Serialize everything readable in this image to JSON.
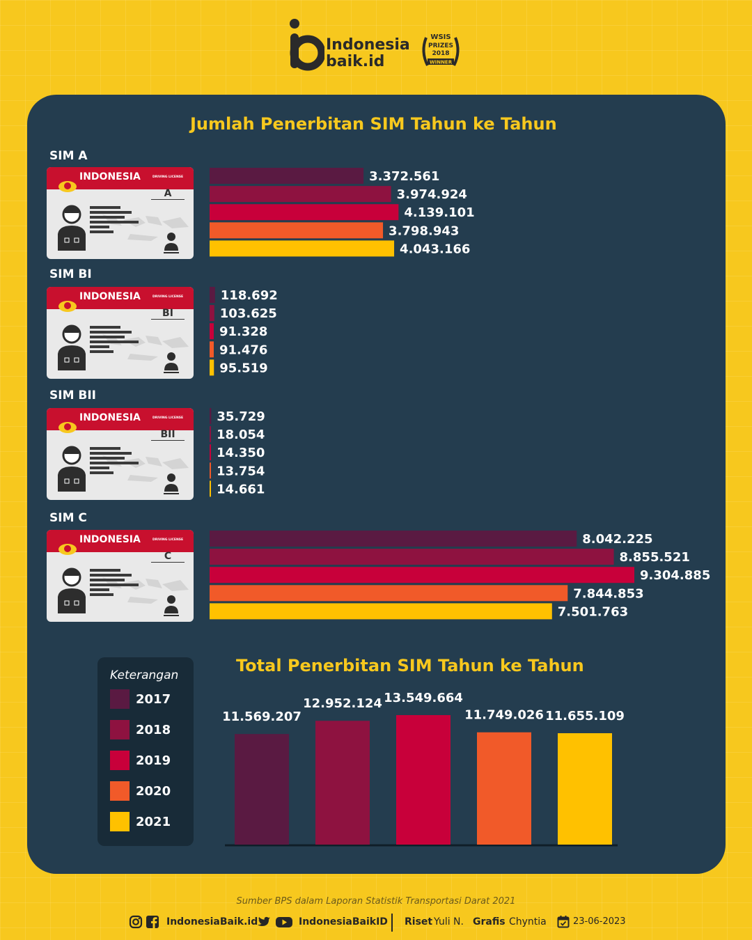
{
  "brand": {
    "name_line1": "Indonesia",
    "name_line2": "baik.id",
    "award_line1": "WSIS",
    "award_line2": "PRIZES",
    "award_line3": "2018",
    "award_line4": "WINNER"
  },
  "title": "Jumlah Penerbitan SIM Tahun ke Tahun",
  "card": {
    "country": "INDONESIA",
    "subtitle": "SURAT IZIN MENGEMUDI",
    "license_text": "DRIVING LICENSE"
  },
  "sim_groups": [
    {
      "label": "SIM A",
      "class": "A"
    },
    {
      "label": "SIM BI",
      "class": "BI"
    },
    {
      "label": "SIM BII",
      "class": "BII"
    },
    {
      "label": "SIM C",
      "class": "C"
    }
  ],
  "colors": {
    "2017": "#5a1a42",
    "2018": "#8e1240",
    "2019": "#c8003a",
    "2020": "#f15a29",
    "2021": "#ffc100",
    "panel": "#243d4f",
    "background": "#f7c81e"
  },
  "chart_data": [
    {
      "type": "bar",
      "orientation": "horizontal",
      "title": "Jumlah Penerbitan SIM Tahun ke Tahun",
      "categories": [
        "SIM A",
        "SIM BI",
        "SIM BII",
        "SIM C"
      ],
      "series": [
        {
          "name": "2017",
          "values": [
            3372561,
            118692,
            35729,
            8042225
          ],
          "labels": [
            "3.372.561",
            "118.692",
            "35.729",
            "8.042.225"
          ]
        },
        {
          "name": "2018",
          "values": [
            3974924,
            103625,
            18054,
            8855521
          ],
          "labels": [
            "3.974.924",
            "103.625",
            "18.054",
            "8.855.521"
          ]
        },
        {
          "name": "2019",
          "values": [
            4139101,
            91328,
            14350,
            9304885
          ],
          "labels": [
            "4.139.101",
            "91.328",
            "14.350",
            "9.304.885"
          ]
        },
        {
          "name": "2020",
          "values": [
            3798943,
            91476,
            13754,
            7844853
          ],
          "labels": [
            "3.798.943",
            "91.476",
            "13.754",
            "7.844.853"
          ]
        },
        {
          "name": "2021",
          "values": [
            4043166,
            95519,
            14661,
            7501763
          ],
          "labels": [
            "4.043.166",
            "95.519",
            "14.661",
            "7.501.763"
          ]
        }
      ],
      "xlim": [
        0,
        9304885
      ]
    },
    {
      "type": "bar",
      "orientation": "vertical",
      "title": "Total Penerbitan SIM Tahun ke Tahun",
      "categories": [
        "2017",
        "2018",
        "2019",
        "2020",
        "2021"
      ],
      "values": [
        11569207,
        12952124,
        13549664,
        11749026,
        11655109
      ],
      "labels": [
        "11.569.207",
        "12.952.124",
        "13.549.664",
        "11.749.026",
        "11.655.109"
      ],
      "ylim": [
        0,
        13549664
      ]
    }
  ],
  "legend": {
    "title": "Keterangan",
    "items": [
      "2017",
      "2018",
      "2019",
      "2020",
      "2021"
    ]
  },
  "source": {
    "prefix": "Sumber",
    "text": "BPS dalam Laporan Statistik Transportasi Darat 2021"
  },
  "footer": {
    "handle_1": "IndonesiaBaik.id",
    "handle_2": "IndonesiaBaikID",
    "riset_label": "Riset",
    "riset_name": "Yuli N.",
    "grafis_label": "Grafis",
    "grafis_name": "Chyntia",
    "date": "23-06-2023"
  }
}
